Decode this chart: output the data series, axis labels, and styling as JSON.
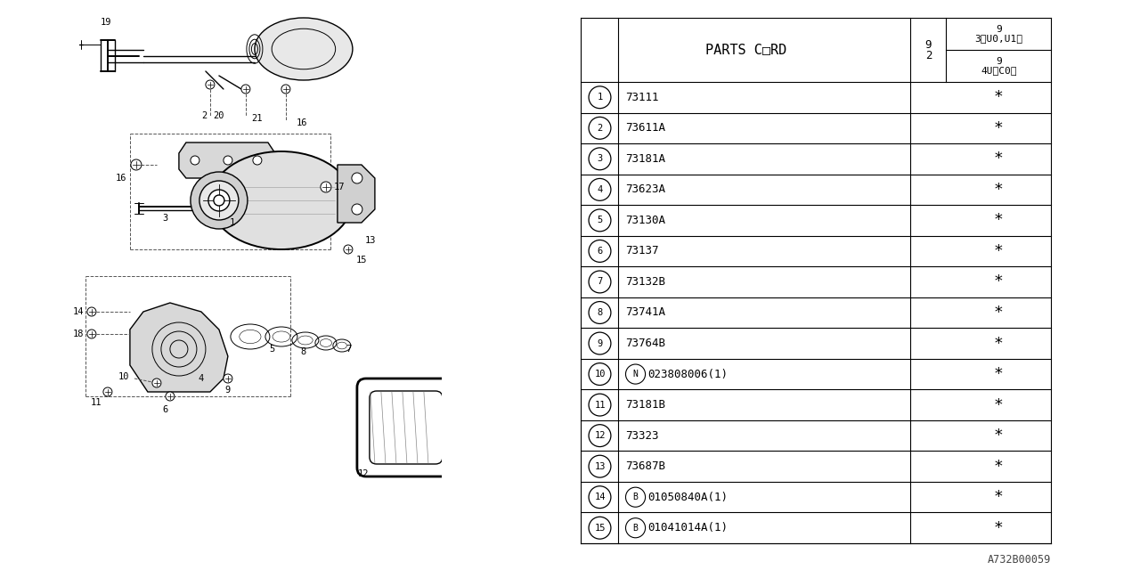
{
  "bg_color": "#ffffff",
  "header_parts_cord": "PARTS C□RD",
  "header_col_92": "9\n2",
  "header_col_93": "9\n3〈U0,U1〉",
  "header_col_94": "9\n4U〈C0〉",
  "rows": [
    {
      "num": "1",
      "prefix": "",
      "code": "73111",
      "star": true
    },
    {
      "num": "2",
      "prefix": "",
      "code": "73611A",
      "star": true
    },
    {
      "num": "3",
      "prefix": "",
      "code": "73181A",
      "star": true
    },
    {
      "num": "4",
      "prefix": "",
      "code": "73623A",
      "star": true
    },
    {
      "num": "5",
      "prefix": "",
      "code": "73130A",
      "star": true
    },
    {
      "num": "6",
      "prefix": "",
      "code": "73137",
      "star": true
    },
    {
      "num": "7",
      "prefix": "",
      "code": "73132B",
      "star": true
    },
    {
      "num": "8",
      "prefix": "",
      "code": "73741A",
      "star": true
    },
    {
      "num": "9",
      "prefix": "",
      "code": "73764B",
      "star": true
    },
    {
      "num": "10",
      "prefix": "N",
      "code": "023808006(1)",
      "star": true
    },
    {
      "num": "11",
      "prefix": "",
      "code": "73181B",
      "star": true
    },
    {
      "num": "12",
      "prefix": "",
      "code": "73323",
      "star": true
    },
    {
      "num": "13",
      "prefix": "",
      "code": "73687B",
      "star": true
    },
    {
      "num": "14",
      "prefix": "B",
      "code": "01050840A(1)",
      "star": true
    },
    {
      "num": "15",
      "prefix": "B",
      "code": "01041014A(1)",
      "star": true
    }
  ],
  "footer_text": "A732B00059"
}
